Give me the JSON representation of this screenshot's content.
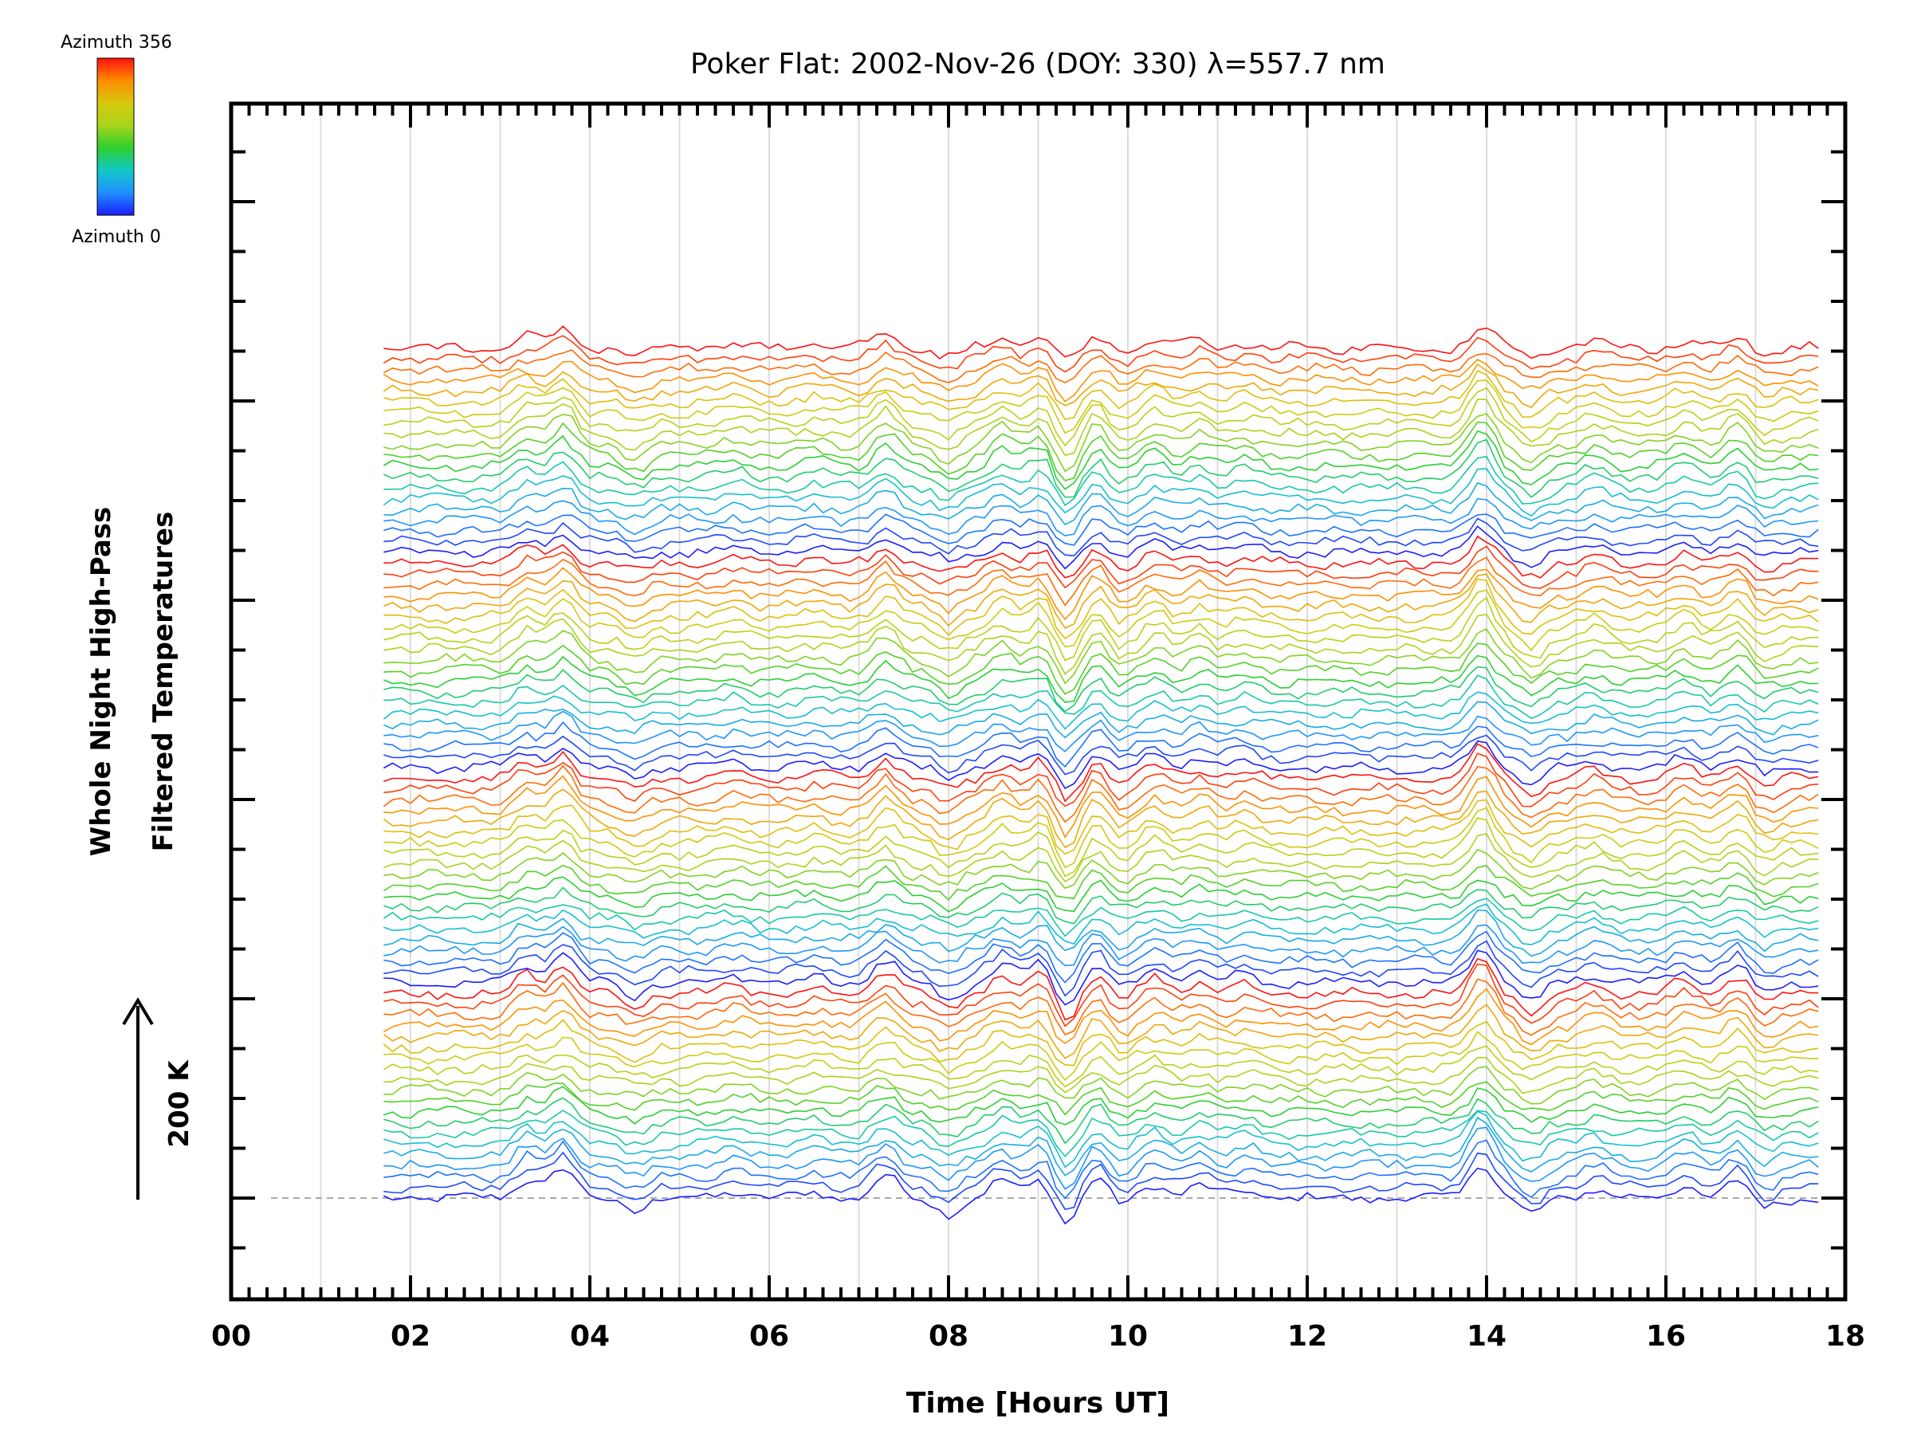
{
  "chart_data": {
    "type": "line",
    "title": "Poker Flat: 2002-Nov-26 (DOY: 330) λ=557.7 nm",
    "xlabel": "Time [Hours UT]",
    "ylabel": [
      "Whole Night High-Pass",
      "Filtered Temperatures"
    ],
    "scale_bar": {
      "label": "200 K",
      "value_K": 200
    },
    "xlim": [
      0,
      18
    ],
    "x_tick_labels": [
      "00",
      "02",
      "04",
      "06",
      "08",
      "10",
      "12",
      "14",
      "16",
      "18"
    ],
    "data_time_range": [
      1.7,
      17.75
    ],
    "colorbar": {
      "top_label": "Azimuth 356",
      "bottom_label": "Azimuth 0",
      "stops": [
        "#1c1cff",
        "#1e90ff",
        "#12c8c8",
        "#2ccf2c",
        "#a8d41c",
        "#d8c80c",
        "#ff8c00",
        "#ff1010"
      ]
    },
    "n_series": 80,
    "trace_spacing": 13.5,
    "common_features": [
      {
        "t": 3.3,
        "amp": 40
      },
      {
        "t": 3.7,
        "amp": 60
      },
      {
        "t": 4.5,
        "amp": -25
      },
      {
        "t": 5.6,
        "amp": 15
      },
      {
        "t": 6.5,
        "amp": 12
      },
      {
        "t": 7.3,
        "amp": 45
      },
      {
        "t": 8.0,
        "amp": -30
      },
      {
        "t": 8.6,
        "amp": 35
      },
      {
        "t": 9.05,
        "amp": 45
      },
      {
        "t": 9.3,
        "amp": -55
      },
      {
        "t": 9.68,
        "amp": 50
      },
      {
        "t": 9.85,
        "amp": -25
      },
      {
        "t": 10.3,
        "amp": 30
      },
      {
        "t": 10.8,
        "amp": 25
      },
      {
        "t": 11.3,
        "amp": 18
      },
      {
        "t": 13.95,
        "amp": 75
      },
      {
        "t": 14.5,
        "amp": -35
      },
      {
        "t": 15.2,
        "amp": 20
      },
      {
        "t": 16.2,
        "amp": 25
      },
      {
        "t": 16.8,
        "amp": 35
      },
      {
        "t": 17.1,
        "amp": -20
      }
    ]
  }
}
